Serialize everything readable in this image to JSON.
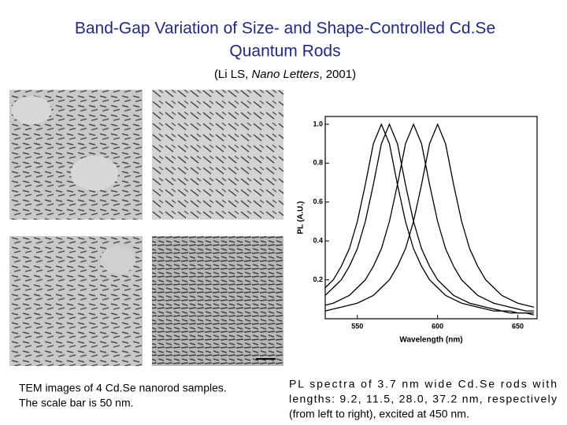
{
  "title": [
    "Band-Gap Variation of Size- and Shape-Controlled Cd.Se",
    "Quantum Rods"
  ],
  "citation": {
    "before": "(Li LS, ",
    "journal": "Nano Letters",
    "after": ", 2001)"
  },
  "tem_caption": [
    "TEM images of 4 Cd.Se nanorod samples.",
    "The scale bar is 50 nm."
  ],
  "pl_caption": [
    "PL spectra of 3.7 nm wide Cd.Se rods with",
    "lengths: 9.2, 11.5, 28.0, 37.2 nm, respectively",
    "(from left to right), excited at 450 nm."
  ],
  "chart_data": {
    "type": "line",
    "xlabel": "Wavelength (nm)",
    "ylabel": "PL (A.U.)",
    "x": [
      530,
      535,
      540,
      545,
      550,
      555,
      560,
      565,
      570,
      575,
      580,
      585,
      590,
      595,
      600,
      605,
      610,
      615,
      620,
      625,
      630,
      635,
      640,
      645,
      650,
      655,
      660
    ],
    "series": [
      {
        "color": "#000000",
        "values": [
          0.16,
          0.2,
          0.27,
          0.36,
          0.5,
          0.69,
          0.9,
          1,
          0.9,
          0.69,
          0.5,
          0.36,
          0.27,
          0.2,
          0.16,
          0.12,
          0.1,
          0.08,
          0.07,
          0.06,
          0.05,
          0.04,
          0.04,
          0.03,
          0.03,
          0.03,
          0.02
        ]
      },
      {
        "color": "#000000",
        "values": [
          0.12,
          0.16,
          0.2,
          0.27,
          0.36,
          0.5,
          0.69,
          0.9,
          1,
          0.9,
          0.69,
          0.5,
          0.36,
          0.27,
          0.2,
          0.16,
          0.12,
          0.1,
          0.08,
          0.07,
          0.06,
          0.05,
          0.04,
          0.04,
          0.03,
          0.03,
          0.03
        ]
      },
      {
        "color": "#000000",
        "values": [
          0.07,
          0.08,
          0.1,
          0.12,
          0.16,
          0.2,
          0.27,
          0.36,
          0.5,
          0.69,
          0.9,
          1,
          0.9,
          0.69,
          0.5,
          0.36,
          0.27,
          0.2,
          0.16,
          0.12,
          0.1,
          0.08,
          0.07,
          0.06,
          0.05,
          0.04,
          0.04
        ]
      },
      {
        "color": "#000000",
        "values": [
          0.04,
          0.05,
          0.06,
          0.07,
          0.08,
          0.1,
          0.12,
          0.16,
          0.2,
          0.27,
          0.36,
          0.5,
          0.69,
          0.9,
          1,
          0.9,
          0.69,
          0.5,
          0.36,
          0.27,
          0.2,
          0.16,
          0.12,
          0.1,
          0.08,
          0.07,
          0.06
        ]
      }
    ],
    "xlim": [
      530,
      662
    ],
    "ylim": [
      0,
      1.04
    ],
    "xticks": [
      550,
      600,
      650
    ],
    "yticks": [
      0.2,
      0.4,
      0.6,
      0.8,
      {
        "value": 1,
        "label": "1.0"
      }
    ]
  }
}
